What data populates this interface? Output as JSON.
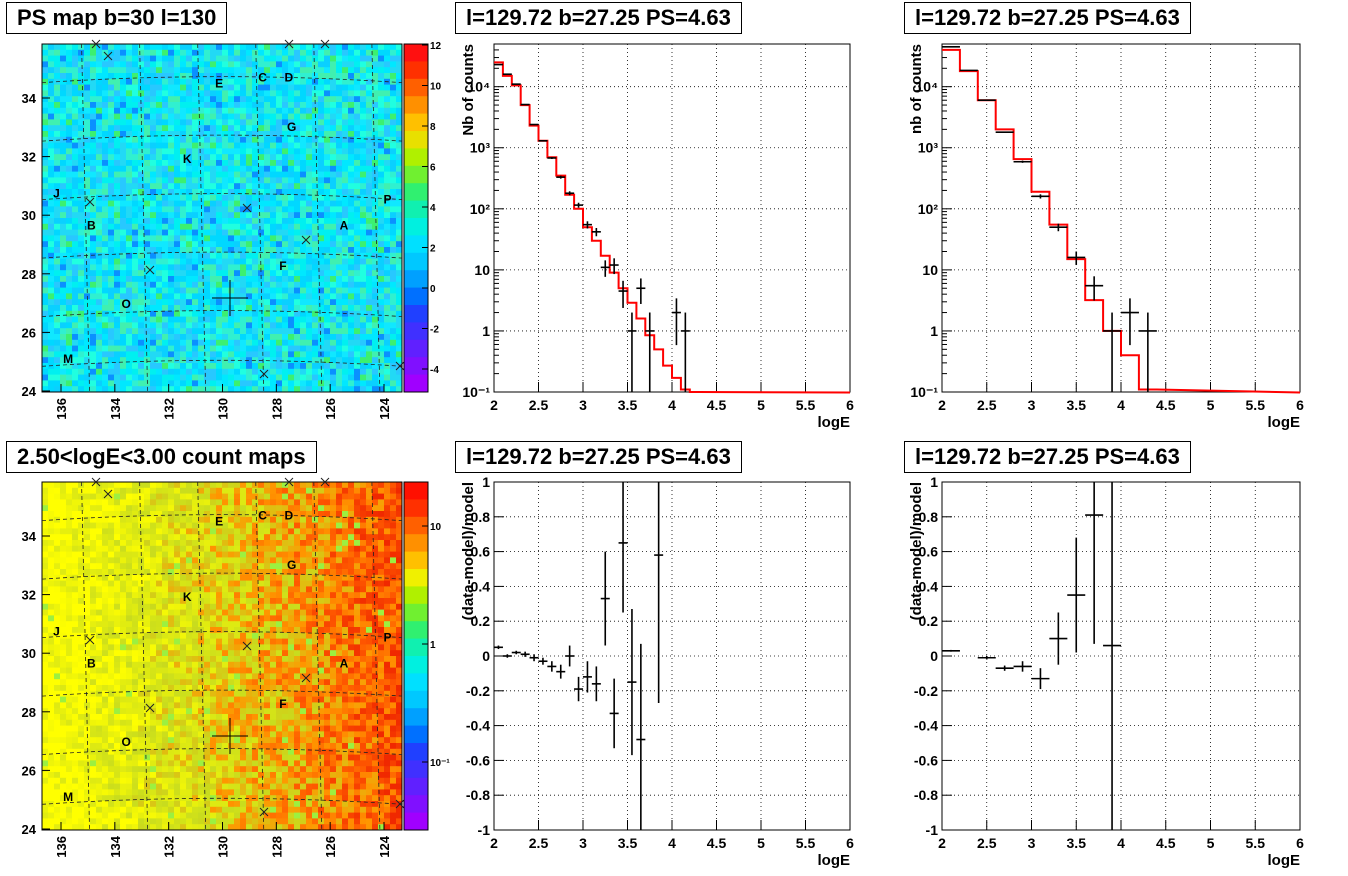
{
  "colors": {
    "heat_low": "#00e8ff",
    "model_line": "#ff0000",
    "data_marks": "#000000",
    "frame": "#000000",
    "grid": "#000000"
  },
  "panels": {
    "map_top": {
      "title": "PS map b=30 l=130",
      "colorbar_ticks": [
        "12",
        "10",
        "8",
        "6",
        "4",
        "2",
        "0",
        "-2",
        "-4"
      ]
    },
    "map_bottom": {
      "title": "2.50<logE<3.00 count maps",
      "colorbar_ticks": [
        "10",
        "1",
        "10⁻¹"
      ]
    },
    "spec_left": {
      "title": "l=129.72 b=27.25 PS=4.63",
      "ylabel": "Nb of counts"
    },
    "spec_right": {
      "title": "l=129.72 b=27.25 PS=4.63",
      "ylabel": "nb of counts"
    },
    "res_left": {
      "title": "l=129.72 b=27.25 PS=4.63",
      "ylabel": "(data-model)/model"
    },
    "res_right": {
      "title": "l=129.72 b=27.25 PS=4.63",
      "ylabel": "(data-model)/model"
    }
  },
  "map_axes": {
    "x_ticks": [
      "136",
      "134",
      "132",
      "130",
      "128",
      "126",
      "124"
    ],
    "y_ticks": [
      "34",
      "32",
      "30",
      "28",
      "26",
      "24"
    ],
    "sources": [
      {
        "label": "E",
        "l": 130.4,
        "b": 34.2
      },
      {
        "label": "C",
        "l": 128.9,
        "b": 34.4
      },
      {
        "label": "D",
        "l": 128.0,
        "b": 34.4
      },
      {
        "label": "G",
        "l": 127.9,
        "b": 32.7
      },
      {
        "label": "K",
        "l": 131.5,
        "b": 31.6
      },
      {
        "label": "J",
        "l": 136.0,
        "b": 30.4
      },
      {
        "label": "P",
        "l": 124.6,
        "b": 30.2
      },
      {
        "label": "B",
        "l": 134.8,
        "b": 29.3
      },
      {
        "label": "A",
        "l": 126.1,
        "b": 29.3
      },
      {
        "label": "F",
        "l": 128.2,
        "b": 27.9
      },
      {
        "label": "O",
        "l": 133.6,
        "b": 26.6
      },
      {
        "label": "M",
        "l": 135.6,
        "b": 24.7
      }
    ]
  },
  "chart_data": [
    {
      "type": "line",
      "panel": "spec_left",
      "title": "l=129.72 b=27.25 PS=4.63",
      "xlabel": "logE",
      "ylabel": "Nb of counts",
      "xlim": [
        2,
        6
      ],
      "ylim": [
        0.1,
        50000
      ],
      "log_y": true,
      "x_ticks": [
        "2",
        "2.5",
        "3",
        "3.5",
        "4",
        "4.5",
        "5",
        "5.5",
        "6"
      ],
      "y_ticks": [
        "10⁻¹",
        "1",
        "10",
        "10²",
        "10³",
        "10⁴"
      ],
      "model_edges": [
        2.0,
        2.1,
        2.2,
        2.3,
        2.4,
        2.5,
        2.6,
        2.7,
        2.8,
        2.9,
        3.0,
        3.1,
        3.2,
        3.3,
        3.4,
        3.5,
        3.6,
        3.7,
        3.8,
        3.9,
        4.0,
        4.1,
        4.2,
        4.3
      ],
      "model": [
        25000,
        15000,
        10500,
        5000,
        2300,
        1300,
        700,
        350,
        170,
        100,
        50,
        30,
        17,
        9,
        5,
        2.9,
        1.6,
        0.85,
        0.5,
        0.27,
        0.17,
        0.11,
        0.1
      ],
      "data": [
        {
          "x": 2.05,
          "y": 23000
        },
        {
          "x": 2.15,
          "y": 16000
        },
        {
          "x": 2.25,
          "y": 11000
        },
        {
          "x": 2.35,
          "y": 5100
        },
        {
          "x": 2.45,
          "y": 2400
        },
        {
          "x": 2.55,
          "y": 1300
        },
        {
          "x": 2.65,
          "y": 680
        },
        {
          "x": 2.75,
          "y": 330
        },
        {
          "x": 2.85,
          "y": 180
        },
        {
          "x": 2.95,
          "y": 115
        },
        {
          "x": 3.05,
          "y": 55
        },
        {
          "x": 3.15,
          "y": 42
        },
        {
          "x": 3.25,
          "y": 11
        },
        {
          "x": 3.35,
          "y": 12
        },
        {
          "x": 3.45,
          "y": 4.5
        },
        {
          "x": 3.55,
          "y": 1
        },
        {
          "x": 3.65,
          "y": 5
        },
        {
          "x": 3.75,
          "y": 1
        },
        {
          "x": 4.05,
          "y": 2
        },
        {
          "x": 4.15,
          "y": 1
        }
      ]
    },
    {
      "type": "line",
      "panel": "spec_right",
      "title": "l=129.72 b=27.25 PS=4.63",
      "xlabel": "logE",
      "ylabel": "nb of counts",
      "xlim": [
        2,
        6
      ],
      "ylim": [
        0.1,
        50000
      ],
      "log_y": true,
      "x_ticks": [
        "2",
        "2.5",
        "3",
        "3.5",
        "4",
        "4.5",
        "5",
        "5.5",
        "6"
      ],
      "y_ticks": [
        "10⁻¹",
        "1",
        "10",
        "10²",
        "10³",
        "10⁴"
      ],
      "model_edges": [
        2.0,
        2.2,
        2.4,
        2.6,
        2.8,
        3.0,
        3.2,
        3.4,
        3.6,
        3.8,
        4.0,
        4.2,
        4.4
      ],
      "model": [
        40000,
        18000,
        6000,
        2000,
        650,
        190,
        55,
        15,
        3.2,
        1,
        0.4,
        0.11
      ],
      "data": [
        {
          "x": 2.1,
          "y": 45000
        },
        {
          "x": 2.3,
          "y": 18500
        },
        {
          "x": 2.5,
          "y": 6000
        },
        {
          "x": 2.7,
          "y": 1800
        },
        {
          "x": 2.9,
          "y": 590
        },
        {
          "x": 3.1,
          "y": 160
        },
        {
          "x": 3.3,
          "y": 50
        },
        {
          "x": 3.5,
          "y": 16
        },
        {
          "x": 3.7,
          "y": 5.5
        },
        {
          "x": 3.9,
          "y": 1
        },
        {
          "x": 4.1,
          "y": 2
        },
        {
          "x": 4.3,
          "y": 1
        }
      ]
    },
    {
      "type": "scatter",
      "panel": "res_left",
      "title": "l=129.72 b=27.25 PS=4.63",
      "xlabel": "logE",
      "ylabel": "(data-model)/model",
      "xlim": [
        2,
        6
      ],
      "ylim": [
        -1,
        1
      ],
      "x_ticks": [
        "2",
        "2.5",
        "3",
        "3.5",
        "4",
        "4.5",
        "5",
        "5.5",
        "6"
      ],
      "y_ticks": [
        "-1",
        "-0.8",
        "-0.6",
        "-0.4",
        "-0.2",
        "0",
        "0.2",
        "0.4",
        "0.6",
        "0.8",
        "1"
      ],
      "data": [
        {
          "x": 2.05,
          "y": 0.05,
          "e": 0.01
        },
        {
          "x": 2.15,
          "y": 0.0,
          "e": 0.01
        },
        {
          "x": 2.25,
          "y": 0.02,
          "e": 0.01
        },
        {
          "x": 2.35,
          "y": 0.01,
          "e": 0.015
        },
        {
          "x": 2.45,
          "y": -0.01,
          "e": 0.02
        },
        {
          "x": 2.55,
          "y": -0.03,
          "e": 0.02
        },
        {
          "x": 2.65,
          "y": -0.06,
          "e": 0.03
        },
        {
          "x": 2.75,
          "y": -0.09,
          "e": 0.04
        },
        {
          "x": 2.85,
          "y": 0.0,
          "e": 0.06
        },
        {
          "x": 2.95,
          "y": -0.19,
          "e": 0.07
        },
        {
          "x": 3.05,
          "y": -0.12,
          "e": 0.09
        },
        {
          "x": 3.15,
          "y": -0.16,
          "e": 0.1
        },
        {
          "x": 3.25,
          "y": 0.33,
          "e": 0.27
        },
        {
          "x": 3.35,
          "y": -0.33,
          "e": 0.2
        },
        {
          "x": 3.45,
          "y": 0.65,
          "e": 0.4
        },
        {
          "x": 3.55,
          "y": -0.15,
          "e": 0.42
        },
        {
          "x": 3.65,
          "y": -0.48,
          "e": 0.55
        },
        {
          "x": 3.85,
          "y": 0.58,
          "e": 0.85
        }
      ]
    },
    {
      "type": "scatter",
      "panel": "res_right",
      "title": "l=129.72 b=27.25 PS=4.63",
      "xlabel": "logE",
      "ylabel": "(data-model)/model",
      "xlim": [
        2,
        6
      ],
      "ylim": [
        -1,
        1
      ],
      "x_ticks": [
        "2",
        "2.5",
        "3",
        "3.5",
        "4",
        "4.5",
        "5",
        "5.5",
        "6"
      ],
      "y_ticks": [
        "-1",
        "-0.8",
        "-0.6",
        "-0.4",
        "-0.2",
        "0",
        "0.2",
        "0.4",
        "0.6",
        "0.8",
        "1"
      ],
      "data": [
        {
          "x": 2.1,
          "y": 0.03,
          "e": 0.005
        },
        {
          "x": 2.5,
          "y": -0.01,
          "e": 0.01
        },
        {
          "x": 2.7,
          "y": -0.07,
          "e": 0.015
        },
        {
          "x": 2.9,
          "y": -0.06,
          "e": 0.03
        },
        {
          "x": 3.1,
          "y": -0.13,
          "e": 0.06
        },
        {
          "x": 3.3,
          "y": 0.1,
          "e": 0.15
        },
        {
          "x": 3.5,
          "y": 0.35,
          "e": 0.33
        },
        {
          "x": 3.7,
          "y": 0.81,
          "e": 0.74
        },
        {
          "x": 3.9,
          "y": 0.06,
          "e": 1.5
        }
      ]
    }
  ]
}
